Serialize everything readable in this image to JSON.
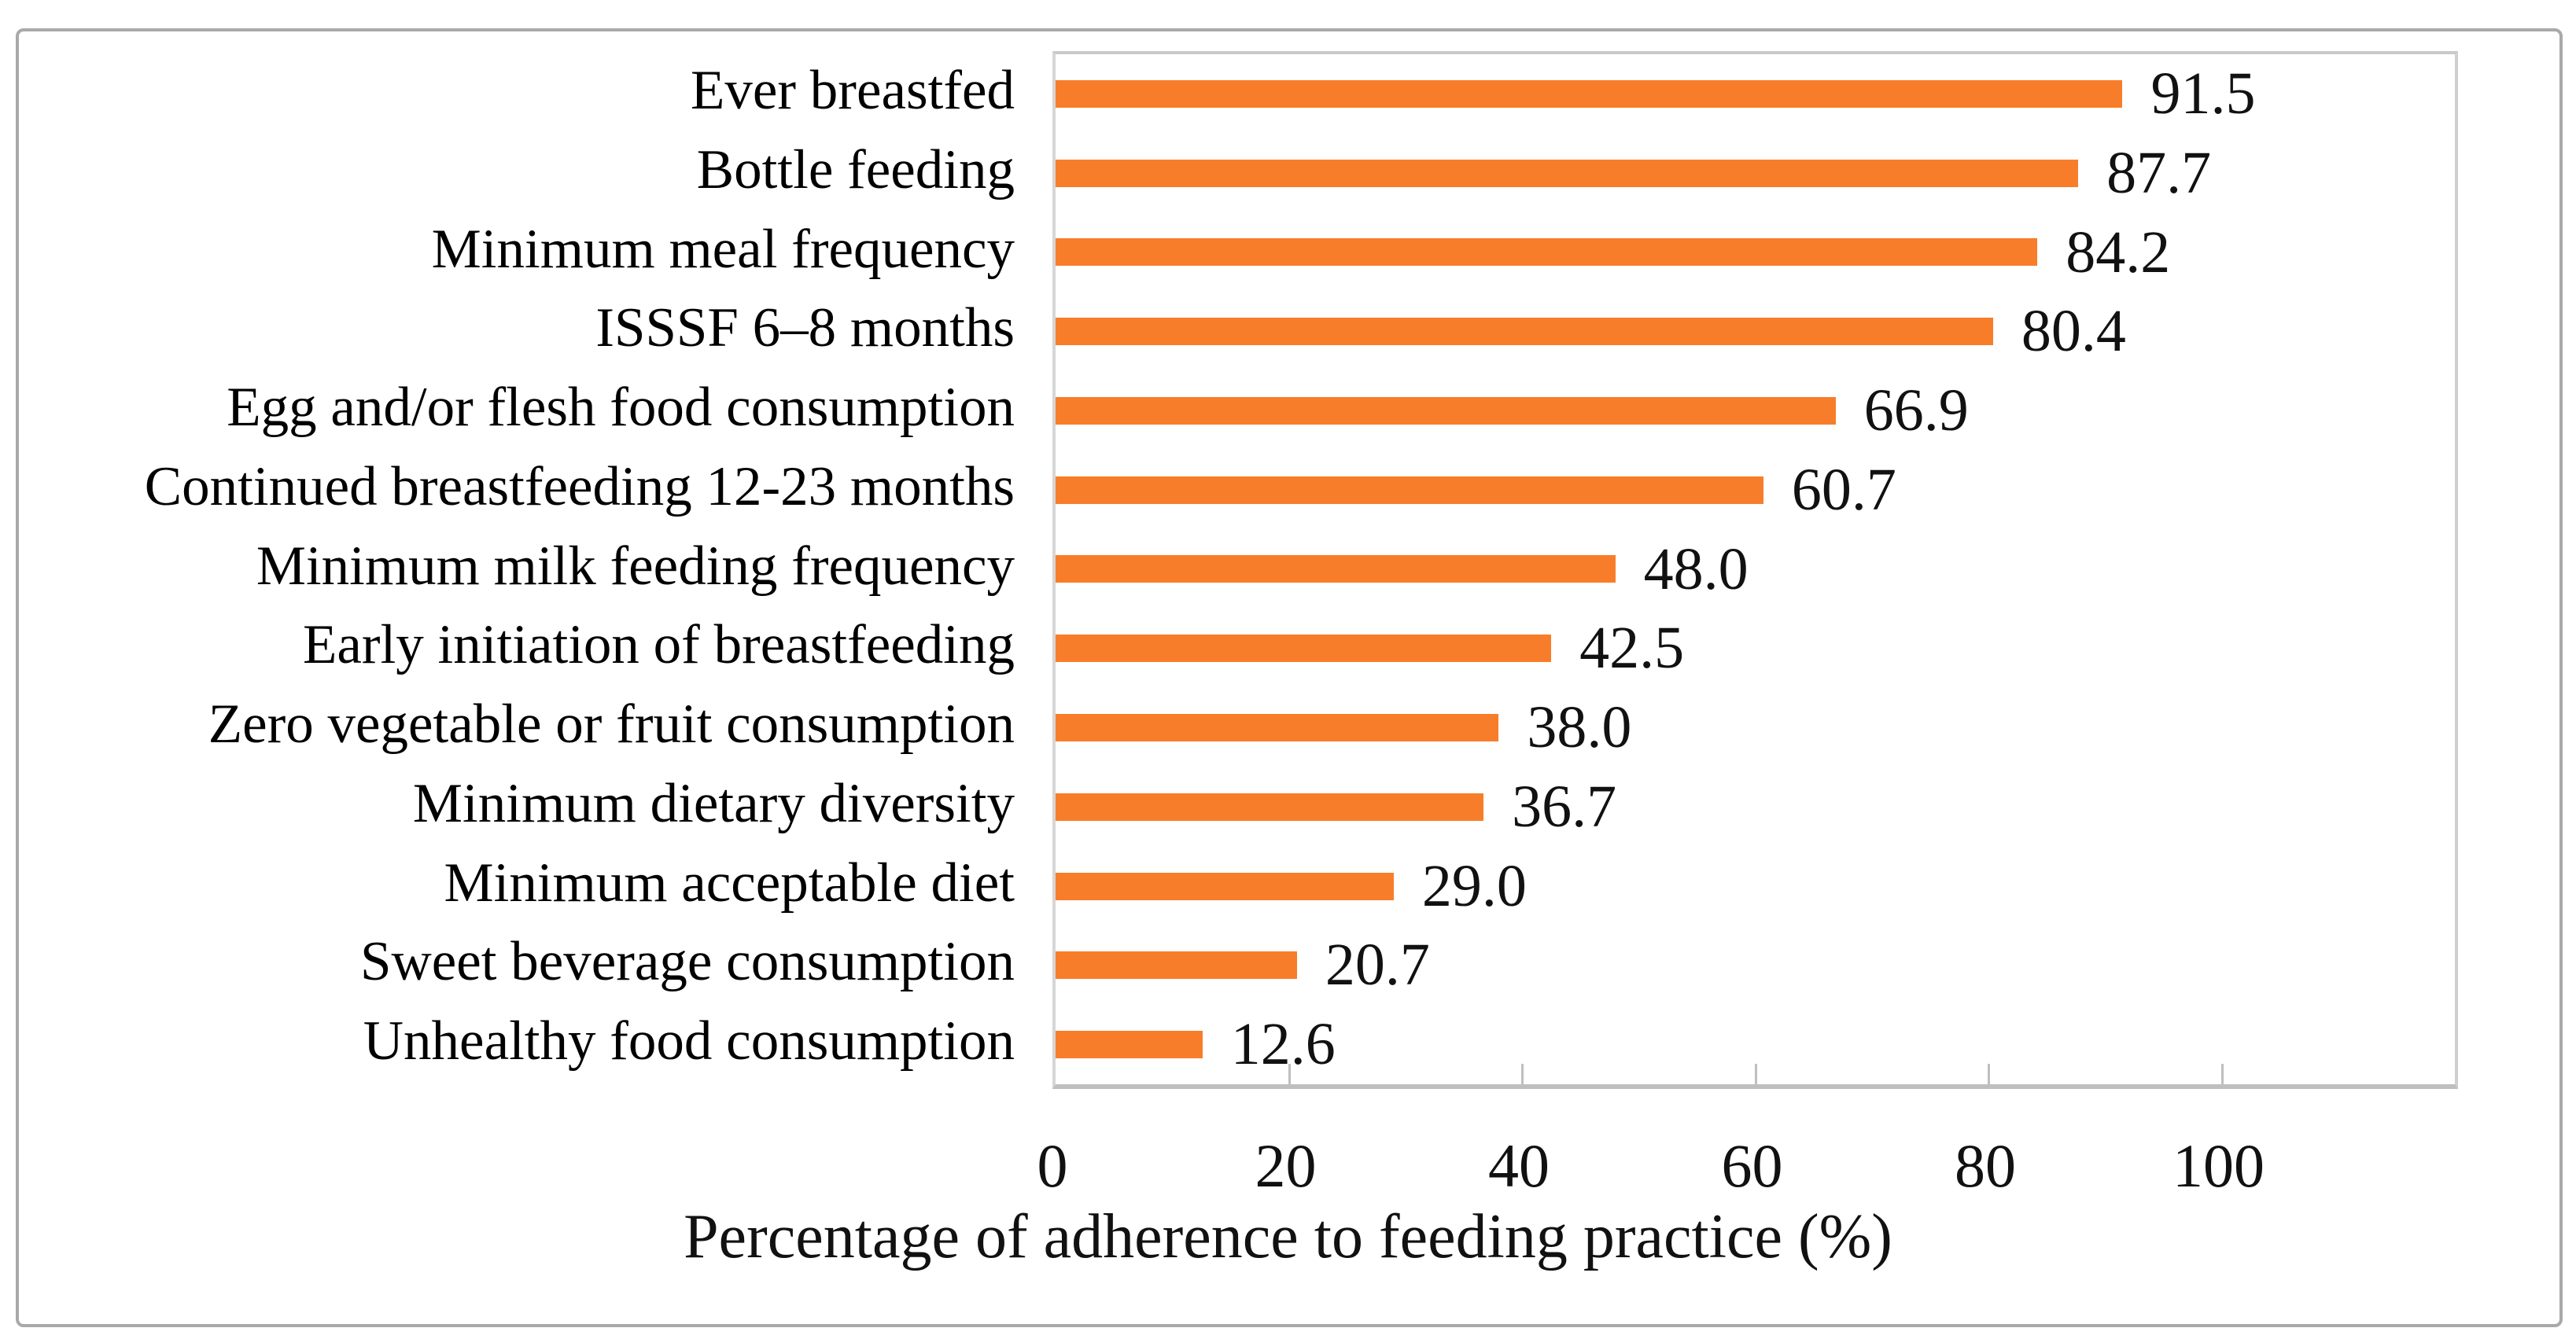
{
  "chart_data": {
    "type": "bar",
    "orientation": "horizontal",
    "categories": [
      "Ever breastfed",
      "Bottle feeding",
      "Minimum meal frequency",
      "ISSSF 6–8 months",
      "Egg and/or flesh food consumption",
      "Continued breastfeeding 12-23 months",
      "Minimum milk feeding frequency",
      "Early initiation of breastfeeding",
      "Zero vegetable or fruit consumption",
      "Minimum dietary diversity",
      "Minimum acceptable diet",
      "Sweet beverage consumption",
      "Unhealthy food consumption"
    ],
    "values": [
      91.5,
      87.7,
      84.2,
      80.4,
      66.9,
      60.7,
      48.0,
      42.5,
      38.0,
      36.7,
      29.0,
      20.7,
      12.6
    ],
    "value_labels": [
      "91.5",
      "87.7",
      "84.2",
      "80.4",
      "66.9",
      "60.7",
      "48.0",
      "42.5",
      "38.0",
      "36.7",
      "29.0",
      "20.7",
      "12.6"
    ],
    "title": "",
    "xlabel": "Percentage of adherence to feeding practice (%)",
    "ylabel": "",
    "xlim": [
      0,
      120
    ],
    "xticks": [
      0,
      20,
      40,
      60,
      80,
      100
    ],
    "grid": false,
    "legend": false,
    "bar_color": "#F87D2A",
    "text_color": "#111111"
  }
}
